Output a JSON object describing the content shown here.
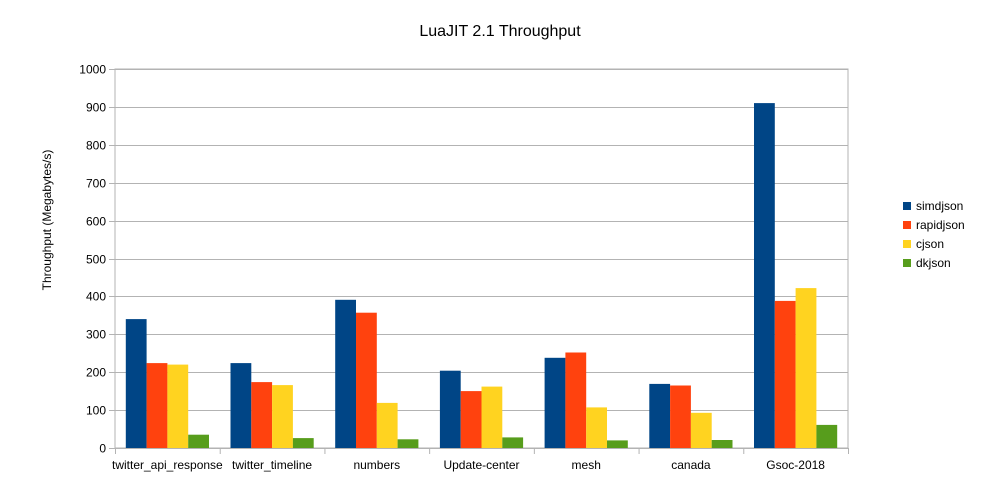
{
  "chart_data": {
    "type": "bar",
    "title": "LuaJIT 2.1 Throughput",
    "xlabel": "",
    "ylabel": "Throughput (Megabytes/s)",
    "ylim": [
      0,
      1000
    ],
    "yticks": [
      0,
      100,
      200,
      300,
      400,
      500,
      600,
      700,
      800,
      900,
      1000
    ],
    "grid": true,
    "legend_position": "right",
    "categories": [
      "twitter_api_response",
      "twitter_timeline",
      "numbers",
      "Update-center",
      "mesh",
      "canada",
      "Gsoc-2018"
    ],
    "series": [
      {
        "name": "simdjson",
        "color": "#004586",
        "values": [
          340,
          224,
          391,
          204,
          238,
          169,
          910
        ]
      },
      {
        "name": "rapidjson",
        "color": "#ff420e",
        "values": [
          224,
          174,
          357,
          150,
          252,
          165,
          388
        ]
      },
      {
        "name": "cjson",
        "color": "#ffd320",
        "values": [
          220,
          166,
          119,
          162,
          107,
          93,
          422
        ]
      },
      {
        "name": "dkjson",
        "color": "#579d1c",
        "values": [
          35,
          26,
          23,
          28,
          20,
          21,
          61
        ]
      }
    ]
  }
}
